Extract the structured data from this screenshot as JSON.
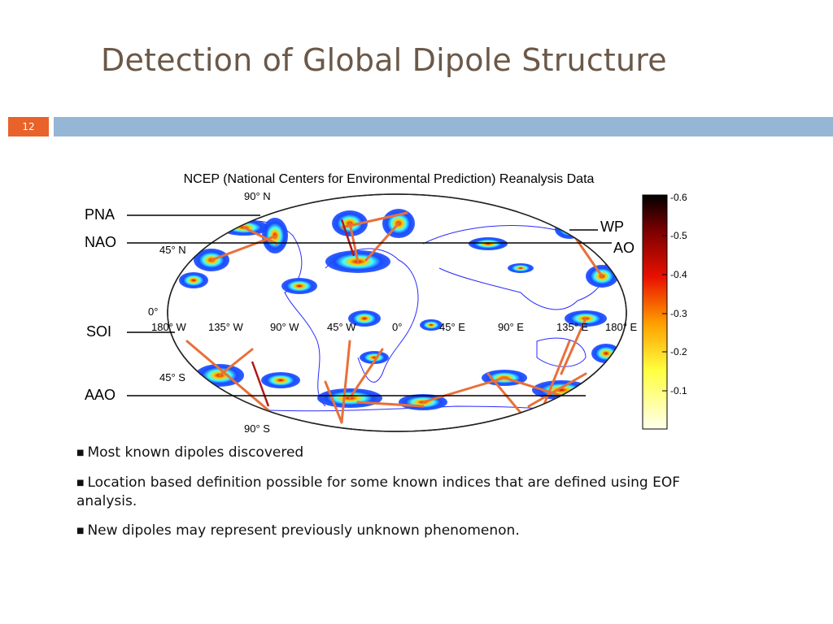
{
  "slide": {
    "title": "Detection of Global Dipole Structure",
    "number": "12",
    "colors": {
      "title": "#6b5848",
      "band": "#95b6d4",
      "number_box": "#e8622a"
    }
  },
  "figure": {
    "caption": "NCEP (National Centers for Environmental Prediction) Reanalysis Data",
    "latitude_labels": [
      "90° N",
      "45° N",
      "0°",
      "45° S",
      "90° S"
    ],
    "longitude_labels": [
      "180° W",
      "135° W",
      "90° W",
      "45° W",
      "0°",
      "45° E",
      "90° E",
      "135° E",
      "180° E"
    ],
    "index_labels": [
      "PNA",
      "NAO",
      "SOI",
      "AAO",
      "WP",
      "AO"
    ],
    "colorbar": {
      "ticks": [
        "-0.6",
        "-0.5",
        "-0.4",
        "-0.3",
        "-0.2",
        "-0.1"
      ],
      "colors": [
        "#ffffee",
        "#ffff40",
        "#ffa000",
        "#e81000",
        "#7a0000",
        "#000000"
      ]
    },
    "colors": {
      "ocean_blob": "#1a4cff",
      "land_outline": "#2a2aff",
      "dipole_edge": "#e8703a",
      "dipole_edge_dark": "#b01818"
    }
  },
  "bullets": [
    "Most known dipoles discovered",
    "Location based definition possible for some known indices that are defined using EOF analysis.",
    "New dipoles may represent previously unknown phenomenon."
  ]
}
